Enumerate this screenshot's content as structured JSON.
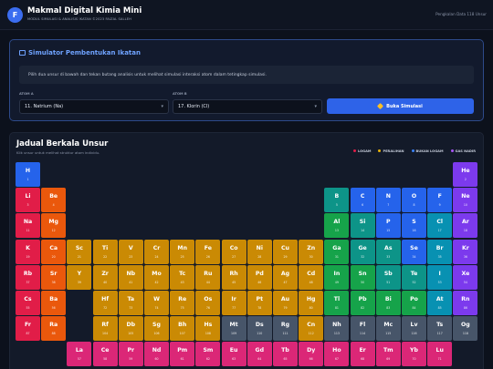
{
  "header": {
    "logo_letter": "F",
    "title": "Makmal Digital Kimia Mini",
    "subtitle": "MODUL SIMULASI & ANALISIS IKATAN ©2023 FAIZAL SALLEH",
    "counter": "Pengkalan Data 118 Unsur"
  },
  "simulator": {
    "title": "Simulator Pembentukan Ikatan",
    "info": "Pilih dua unsur di bawah dan tekan butang analisis untuk melihat simulasi interaksi atom dalam tetingkap simulasi.",
    "atom_a_label": "ATOM A",
    "atom_a_value": "11. Natrium (Na)",
    "atom_b_label": "ATOM B",
    "atom_b_value": "17. Klorin (Cl)",
    "button_label": "Buka Simulasi"
  },
  "table": {
    "title": "Jadual Berkala Unsur",
    "subtitle": "Klik unsur untuk melihat struktur atom individu.",
    "legend": [
      {
        "label": "LOGAM",
        "color": "#e11d48"
      },
      {
        "label": "PERALIHAN",
        "color": "#eab308"
      },
      {
        "label": "BUKAN LOGAM",
        "color": "#3b82f6"
      },
      {
        "label": "GAS NADIR",
        "color": "#a855f7"
      }
    ],
    "colors": {
      "alkali": "#e11d48",
      "alkaline": "#ea580c",
      "transition": "#ca8a04",
      "nonmetal": "#2563eb",
      "metalloid": "#0d9488",
      "post": "#16a34a",
      "halogen": "#0891b2",
      "noble": "#7c3aed",
      "lanthanide": "#db2777",
      "unknown": "#475569"
    },
    "elements": [
      {
        "sym": "H",
        "num": "1",
        "r": 1,
        "c": 1,
        "cat": "nonmetal"
      },
      {
        "sym": "He",
        "num": "2",
        "r": 1,
        "c": 18,
        "cat": "noble"
      },
      {
        "sym": "Li",
        "num": "3",
        "r": 2,
        "c": 1,
        "cat": "alkali"
      },
      {
        "sym": "Be",
        "num": "4",
        "r": 2,
        "c": 2,
        "cat": "alkaline"
      },
      {
        "sym": "B",
        "num": "5",
        "r": 2,
        "c": 13,
        "cat": "metalloid"
      },
      {
        "sym": "C",
        "num": "6",
        "r": 2,
        "c": 14,
        "cat": "nonmetal"
      },
      {
        "sym": "N",
        "num": "7",
        "r": 2,
        "c": 15,
        "cat": "nonmetal"
      },
      {
        "sym": "O",
        "num": "8",
        "r": 2,
        "c": 16,
        "cat": "nonmetal"
      },
      {
        "sym": "F",
        "num": "9",
        "r": 2,
        "c": 17,
        "cat": "nonmetal"
      },
      {
        "sym": "Ne",
        "num": "10",
        "r": 2,
        "c": 18,
        "cat": "noble"
      },
      {
        "sym": "Na",
        "num": "11",
        "r": 3,
        "c": 1,
        "cat": "alkali"
      },
      {
        "sym": "Mg",
        "num": "12",
        "r": 3,
        "c": 2,
        "cat": "alkaline"
      },
      {
        "sym": "Al",
        "num": "13",
        "r": 3,
        "c": 13,
        "cat": "post"
      },
      {
        "sym": "Si",
        "num": "14",
        "r": 3,
        "c": 14,
        "cat": "metalloid"
      },
      {
        "sym": "P",
        "num": "15",
        "r": 3,
        "c": 15,
        "cat": "nonmetal"
      },
      {
        "sym": "S",
        "num": "16",
        "r": 3,
        "c": 16,
        "cat": "nonmetal"
      },
      {
        "sym": "Cl",
        "num": "17",
        "r": 3,
        "c": 17,
        "cat": "halogen"
      },
      {
        "sym": "Ar",
        "num": "18",
        "r": 3,
        "c": 18,
        "cat": "noble"
      },
      {
        "sym": "K",
        "num": "19",
        "r": 4,
        "c": 1,
        "cat": "alkali"
      },
      {
        "sym": "Ca",
        "num": "20",
        "r": 4,
        "c": 2,
        "cat": "alkaline"
      },
      {
        "sym": "Sc",
        "num": "21",
        "r": 4,
        "c": 3,
        "cat": "transition"
      },
      {
        "sym": "Ti",
        "num": "22",
        "r": 4,
        "c": 4,
        "cat": "transition"
      },
      {
        "sym": "V",
        "num": "23",
        "r": 4,
        "c": 5,
        "cat": "transition"
      },
      {
        "sym": "Cr",
        "num": "24",
        "r": 4,
        "c": 6,
        "cat": "transition"
      },
      {
        "sym": "Mn",
        "num": "25",
        "r": 4,
        "c": 7,
        "cat": "transition"
      },
      {
        "sym": "Fe",
        "num": "26",
        "r": 4,
        "c": 8,
        "cat": "transition"
      },
      {
        "sym": "Co",
        "num": "27",
        "r": 4,
        "c": 9,
        "cat": "transition"
      },
      {
        "sym": "Ni",
        "num": "28",
        "r": 4,
        "c": 10,
        "cat": "transition"
      },
      {
        "sym": "Cu",
        "num": "29",
        "r": 4,
        "c": 11,
        "cat": "transition"
      },
      {
        "sym": "Zn",
        "num": "30",
        "r": 4,
        "c": 12,
        "cat": "transition"
      },
      {
        "sym": "Ga",
        "num": "31",
        "r": 4,
        "c": 13,
        "cat": "post"
      },
      {
        "sym": "Ge",
        "num": "32",
        "r": 4,
        "c": 14,
        "cat": "metalloid"
      },
      {
        "sym": "As",
        "num": "33",
        "r": 4,
        "c": 15,
        "cat": "metalloid"
      },
      {
        "sym": "Se",
        "num": "34",
        "r": 4,
        "c": 16,
        "cat": "nonmetal"
      },
      {
        "sym": "Br",
        "num": "35",
        "r": 4,
        "c": 17,
        "cat": "halogen"
      },
      {
        "sym": "Kr",
        "num": "36",
        "r": 4,
        "c": 18,
        "cat": "noble"
      },
      {
        "sym": "Rb",
        "num": "37",
        "r": 5,
        "c": 1,
        "cat": "alkali"
      },
      {
        "sym": "Sr",
        "num": "38",
        "r": 5,
        "c": 2,
        "cat": "alkaline"
      },
      {
        "sym": "Y",
        "num": "39",
        "r": 5,
        "c": 3,
        "cat": "transition"
      },
      {
        "sym": "Zr",
        "num": "40",
        "r": 5,
        "c": 4,
        "cat": "transition"
      },
      {
        "sym": "Nb",
        "num": "41",
        "r": 5,
        "c": 5,
        "cat": "transition"
      },
      {
        "sym": "Mo",
        "num": "42",
        "r": 5,
        "c": 6,
        "cat": "transition"
      },
      {
        "sym": "Tc",
        "num": "43",
        "r": 5,
        "c": 7,
        "cat": "transition"
      },
      {
        "sym": "Ru",
        "num": "44",
        "r": 5,
        "c": 8,
        "cat": "transition"
      },
      {
        "sym": "Rh",
        "num": "45",
        "r": 5,
        "c": 9,
        "cat": "transition"
      },
      {
        "sym": "Pd",
        "num": "46",
        "r": 5,
        "c": 10,
        "cat": "transition"
      },
      {
        "sym": "Ag",
        "num": "47",
        "r": 5,
        "c": 11,
        "cat": "transition"
      },
      {
        "sym": "Cd",
        "num": "48",
        "r": 5,
        "c": 12,
        "cat": "transition"
      },
      {
        "sym": "In",
        "num": "49",
        "r": 5,
        "c": 13,
        "cat": "post"
      },
      {
        "sym": "Sn",
        "num": "50",
        "r": 5,
        "c": 14,
        "cat": "post"
      },
      {
        "sym": "Sb",
        "num": "51",
        "r": 5,
        "c": 15,
        "cat": "metalloid"
      },
      {
        "sym": "Te",
        "num": "52",
        "r": 5,
        "c": 16,
        "cat": "metalloid"
      },
      {
        "sym": "I",
        "num": "53",
        "r": 5,
        "c": 17,
        "cat": "halogen"
      },
      {
        "sym": "Xe",
        "num": "54",
        "r": 5,
        "c": 18,
        "cat": "noble"
      },
      {
        "sym": "Cs",
        "num": "55",
        "r": 6,
        "c": 1,
        "cat": "alkali"
      },
      {
        "sym": "Ba",
        "num": "56",
        "r": 6,
        "c": 2,
        "cat": "alkaline"
      },
      {
        "sym": "Hf",
        "num": "72",
        "r": 6,
        "c": 4,
        "cat": "transition"
      },
      {
        "sym": "Ta",
        "num": "73",
        "r": 6,
        "c": 5,
        "cat": "transition"
      },
      {
        "sym": "W",
        "num": "74",
        "r": 6,
        "c": 6,
        "cat": "transition"
      },
      {
        "sym": "Re",
        "num": "75",
        "r": 6,
        "c": 7,
        "cat": "transition"
      },
      {
        "sym": "Os",
        "num": "76",
        "r": 6,
        "c": 8,
        "cat": "transition"
      },
      {
        "sym": "Ir",
        "num": "77",
        "r": 6,
        "c": 9,
        "cat": "transition"
      },
      {
        "sym": "Pt",
        "num": "78",
        "r": 6,
        "c": 10,
        "cat": "transition"
      },
      {
        "sym": "Au",
        "num": "79",
        "r": 6,
        "c": 11,
        "cat": "transition"
      },
      {
        "sym": "Hg",
        "num": "80",
        "r": 6,
        "c": 12,
        "cat": "transition"
      },
      {
        "sym": "Tl",
        "num": "81",
        "r": 6,
        "c": 13,
        "cat": "post"
      },
      {
        "sym": "Pb",
        "num": "82",
        "r": 6,
        "c": 14,
        "cat": "post"
      },
      {
        "sym": "Bi",
        "num": "83",
        "r": 6,
        "c": 15,
        "cat": "post"
      },
      {
        "sym": "Po",
        "num": "84",
        "r": 6,
        "c": 16,
        "cat": "post"
      },
      {
        "sym": "At",
        "num": "85",
        "r": 6,
        "c": 17,
        "cat": "halogen"
      },
      {
        "sym": "Rn",
        "num": "86",
        "r": 6,
        "c": 18,
        "cat": "noble"
      },
      {
        "sym": "Fr",
        "num": "87",
        "r": 7,
        "c": 1,
        "cat": "alkali"
      },
      {
        "sym": "Ra",
        "num": "88",
        "r": 7,
        "c": 2,
        "cat": "alkaline"
      },
      {
        "sym": "Rf",
        "num": "104",
        "r": 7,
        "c": 4,
        "cat": "transition"
      },
      {
        "sym": "Db",
        "num": "105",
        "r": 7,
        "c": 5,
        "cat": "transition"
      },
      {
        "sym": "Sg",
        "num": "106",
        "r": 7,
        "c": 6,
        "cat": "transition"
      },
      {
        "sym": "Bh",
        "num": "107",
        "r": 7,
        "c": 7,
        "cat": "transition"
      },
      {
        "sym": "Hs",
        "num": "108",
        "r": 7,
        "c": 8,
        "cat": "transition"
      },
      {
        "sym": "Mt",
        "num": "109",
        "r": 7,
        "c": 9,
        "cat": "unknown"
      },
      {
        "sym": "Ds",
        "num": "110",
        "r": 7,
        "c": 10,
        "cat": "unknown"
      },
      {
        "sym": "Rg",
        "num": "111",
        "r": 7,
        "c": 11,
        "cat": "unknown"
      },
      {
        "sym": "Cn",
        "num": "112",
        "r": 7,
        "c": 12,
        "cat": "transition"
      },
      {
        "sym": "Nh",
        "num": "113",
        "r": 7,
        "c": 13,
        "cat": "unknown"
      },
      {
        "sym": "Fl",
        "num": "114",
        "r": 7,
        "c": 14,
        "cat": "unknown"
      },
      {
        "sym": "Mc",
        "num": "115",
        "r": 7,
        "c": 15,
        "cat": "unknown"
      },
      {
        "sym": "Lv",
        "num": "116",
        "r": 7,
        "c": 16,
        "cat": "unknown"
      },
      {
        "sym": "Ts",
        "num": "117",
        "r": 7,
        "c": 17,
        "cat": "unknown"
      },
      {
        "sym": "Og",
        "num": "118",
        "r": 7,
        "c": 18,
        "cat": "unknown"
      },
      {
        "sym": "La",
        "num": "57",
        "r": 8,
        "c": 3,
        "cat": "lanthanide"
      },
      {
        "sym": "Ce",
        "num": "58",
        "r": 8,
        "c": 4,
        "cat": "lanthanide"
      },
      {
        "sym": "Pr",
        "num": "59",
        "r": 8,
        "c": 5,
        "cat": "lanthanide"
      },
      {
        "sym": "Nd",
        "num": "60",
        "r": 8,
        "c": 6,
        "cat": "lanthanide"
      },
      {
        "sym": "Pm",
        "num": "61",
        "r": 8,
        "c": 7,
        "cat": "lanthanide"
      },
      {
        "sym": "Sm",
        "num": "62",
        "r": 8,
        "c": 8,
        "cat": "lanthanide"
      },
      {
        "sym": "Eu",
        "num": "63",
        "r": 8,
        "c": 9,
        "cat": "lanthanide"
      },
      {
        "sym": "Gd",
        "num": "64",
        "r": 8,
        "c": 10,
        "cat": "lanthanide"
      },
      {
        "sym": "Tb",
        "num": "65",
        "r": 8,
        "c": 11,
        "cat": "lanthanide"
      },
      {
        "sym": "Dy",
        "num": "66",
        "r": 8,
        "c": 12,
        "cat": "lanthanide"
      },
      {
        "sym": "Ho",
        "num": "67",
        "r": 8,
        "c": 13,
        "cat": "lanthanide"
      },
      {
        "sym": "Er",
        "num": "68",
        "r": 8,
        "c": 14,
        "cat": "lanthanide"
      },
      {
        "sym": "Tm",
        "num": "69",
        "r": 8,
        "c": 15,
        "cat": "lanthanide"
      },
      {
        "sym": "Yb",
        "num": "70",
        "r": 8,
        "c": 16,
        "cat": "lanthanide"
      },
      {
        "sym": "Lu",
        "num": "71",
        "r": 8,
        "c": 17,
        "cat": "lanthanide"
      }
    ]
  }
}
